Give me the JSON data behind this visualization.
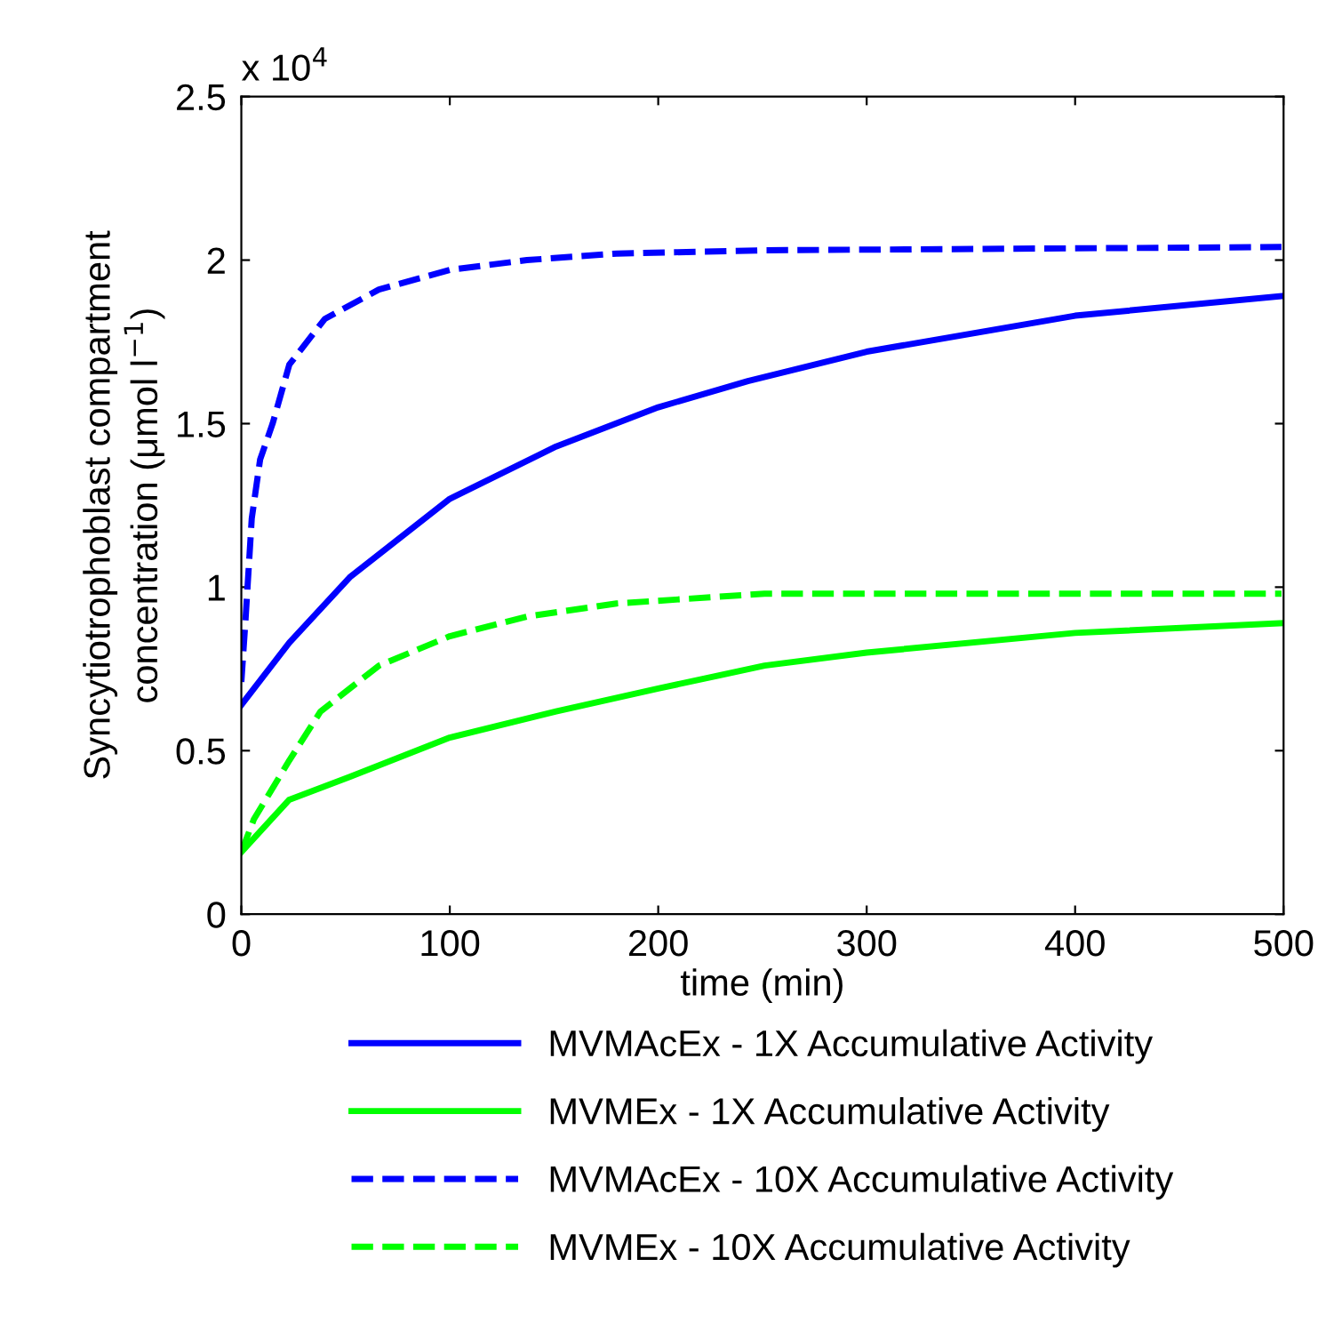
{
  "chart_data": {
    "type": "line",
    "xlabel": "time (min)",
    "ylabel": "Syncytiotrophoblast compartment\nconcentration (μmol l$^{−1}$)",
    "annotations": [
      "x 10$^{4}$"
    ],
    "xlim": [
      0,
      500
    ],
    "ylim": [
      0,
      2.5
    ],
    "xticks": [
      0,
      100,
      200,
      300,
      400,
      500
    ],
    "yticks": [
      0,
      0.5,
      1,
      1.5,
      2,
      2.5
    ],
    "grid": false,
    "legend": "bottom",
    "series": [
      {
        "name": "MVMAcEx - 1X Accumulative Activity",
        "color": "#0000ff",
        "line_style": "solid",
        "x": [
          0,
          23,
          52,
          100,
          151,
          200,
          243,
          300,
          400,
          499
        ],
        "values": [
          0.64,
          0.83,
          1.03,
          1.27,
          1.43,
          1.55,
          1.63,
          1.72,
          1.83,
          1.89
        ]
      },
      {
        "name": "MVMEx - 1X Accumulative Activity",
        "color": "#00ff00",
        "line_style": "solid",
        "x": [
          0,
          23,
          52,
          100,
          151,
          200,
          251,
          300,
          400,
          499
        ],
        "values": [
          0.19,
          0.35,
          0.42,
          0.54,
          0.62,
          0.69,
          0.76,
          0.8,
          0.86,
          0.89
        ]
      },
      {
        "name": "MVMAcEx - 10X Accumulative Activity",
        "color": "#0000ff",
        "line_style": "dashed",
        "x": [
          0,
          2,
          5,
          9,
          15,
          23,
          40,
          66,
          100,
          137,
          180,
          251,
          499
        ],
        "values": [
          0.71,
          0.9,
          1.21,
          1.39,
          1.5,
          1.68,
          1.82,
          1.91,
          1.97,
          2.0,
          2.02,
          2.03,
          2.04
        ]
      },
      {
        "name": "MVMEx - 10X Accumulative Activity",
        "color": "#00ff00",
        "line_style": "dashed",
        "x": [
          0,
          6,
          23,
          38,
          66,
          100,
          137,
          180,
          251,
          499
        ],
        "values": [
          0.19,
          0.29,
          0.47,
          0.62,
          0.76,
          0.85,
          0.91,
          0.95,
          0.98,
          0.98
        ]
      }
    ]
  }
}
